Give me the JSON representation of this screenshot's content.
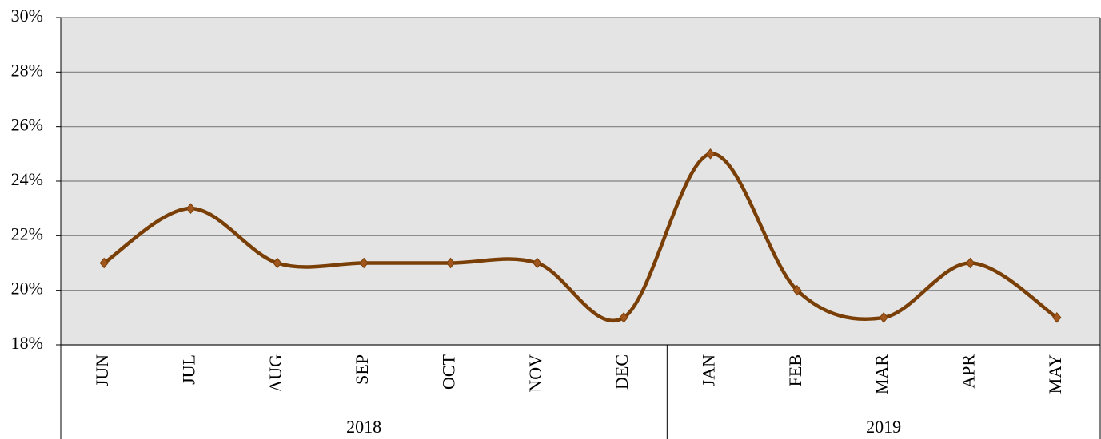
{
  "chart_data": {
    "type": "line",
    "categories": [
      "JUN",
      "JUL",
      "AUG",
      "SEP",
      "OCT",
      "NOV",
      "DEC",
      "JAN",
      "FEB",
      "MAR",
      "APR",
      "MAY"
    ],
    "groups": [
      {
        "label": "2018",
        "span": 7
      },
      {
        "label": "2019",
        "span": 5
      }
    ],
    "series": [
      {
        "color": "#7a3f06",
        "values": [
          21,
          23,
          21,
          21,
          21,
          21,
          19,
          25,
          20,
          19,
          21,
          19
        ]
      }
    ],
    "ylim": [
      18,
      30
    ],
    "yticks": [
      {
        "value": 18,
        "label": "18%"
      },
      {
        "value": 20,
        "label": "20%"
      },
      {
        "value": 22,
        "label": "22%"
      },
      {
        "value": 24,
        "label": "24%"
      },
      {
        "value": 26,
        "label": "26%"
      },
      {
        "value": 28,
        "label": "28%"
      },
      {
        "value": 30,
        "label": "30%"
      }
    ],
    "grid": true,
    "smooth": true
  }
}
